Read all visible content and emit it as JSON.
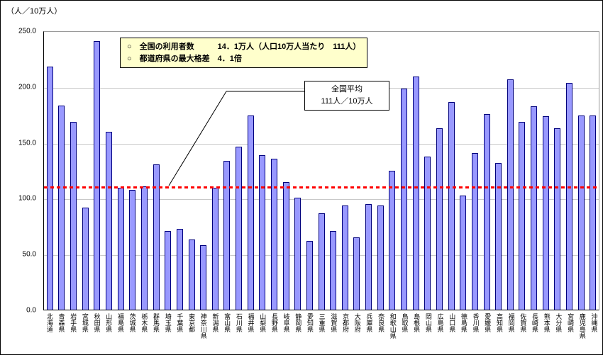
{
  "chart_data": {
    "type": "bar",
    "title": "",
    "unit_label": "（人／10万人）",
    "ylim": [
      0,
      250
    ],
    "ytick_interval": 50,
    "yticks": [
      {
        "value": 250,
        "label": "250.0"
      },
      {
        "value": 200,
        "label": "200.0"
      },
      {
        "value": 150,
        "label": "150.0"
      },
      {
        "value": 100,
        "label": "100.0"
      },
      {
        "value": 50,
        "label": "50.0"
      },
      {
        "value": 0,
        "label": "0.0"
      }
    ],
    "grid": true,
    "legend": "none",
    "bar_color": "#9999FF",
    "bar_border_color": "#00007D",
    "categories": [
      "北海道",
      "青森県",
      "岩手県",
      "宮城県",
      "秋田県",
      "山形県",
      "福島県",
      "茨城県",
      "栃木県",
      "群馬県",
      "埼玉県",
      "千葉県",
      "東京都",
      "神奈川県",
      "新潟県",
      "富山県",
      "石川県",
      "福井県",
      "山梨県",
      "長野県",
      "岐阜県",
      "静岡県",
      "愛知県",
      "三重県",
      "滋賀県",
      "京都府",
      "大阪府",
      "兵庫県",
      "奈良県",
      "和歌山県",
      "鳥取県",
      "島根県",
      "岡山県",
      "広島県",
      "山口県",
      "徳島県",
      "香川県",
      "愛媛県",
      "高知県",
      "福岡県",
      "佐賀県",
      "長崎県",
      "熊本県",
      "大分県",
      "宮崎県",
      "鹿児島県",
      "沖縄県"
    ],
    "values": [
      219,
      184,
      169,
      92,
      242,
      160,
      110,
      108,
      111,
      131,
      71,
      73,
      63,
      58,
      110,
      134,
      147,
      175,
      139,
      136,
      115,
      101,
      62,
      87,
      71,
      94,
      65,
      95,
      94,
      125,
      199,
      210,
      138,
      163,
      187,
      103,
      141,
      176,
      132,
      207,
      169,
      183,
      174,
      163,
      204,
      175,
      175
    ],
    "average_line": {
      "value": 111,
      "color": "#FF0000",
      "style": "dashed"
    },
    "info_box": {
      "line1": "○　全国の利用者数　　　14．1万人（人口10万人当たり　111人）",
      "line2": "○　都道府県の最大格差　4．1倍"
    },
    "callout": {
      "line1": "全国平均",
      "line2": "111人／10万人"
    }
  }
}
